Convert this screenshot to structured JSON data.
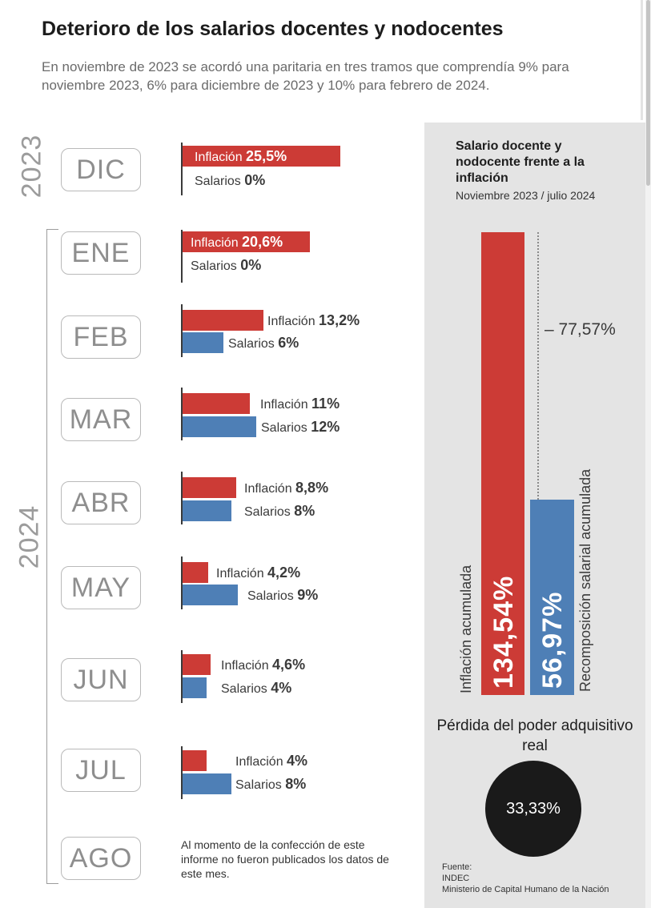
{
  "title": "Deterioro de los salarios docentes y nodocentes",
  "subtitle": "En noviembre de 2023 se acordó una paritaria en tres tramos que comprendía 9% para noviembre 2023, 6% para diciembre de 2023 y 10% para febrero de 2024.",
  "years": {
    "y2023": "2023",
    "y2024": "2024"
  },
  "months": {
    "dic": {
      "label": "DIC",
      "inf_text": "Inflación",
      "inf_val": "25,5%",
      "sal_text": "Salarios",
      "sal_val": "0%"
    },
    "ene": {
      "label": "ENE",
      "inf_text": "Inflación",
      "inf_val": "20,6%",
      "sal_text": "Salarios",
      "sal_val": "0%"
    },
    "feb": {
      "label": "FEB",
      "inf_text": "Inflación",
      "inf_val": "13,2%",
      "sal_text": "Salarios",
      "sal_val": "6%"
    },
    "mar": {
      "label": "MAR",
      "inf_text": "Inflación",
      "inf_val": "11%",
      "sal_text": "Salarios",
      "sal_val": "12%"
    },
    "abr": {
      "label": "ABR",
      "inf_text": "Inflación",
      "inf_val": "8,8%",
      "sal_text": "Salarios",
      "sal_val": "8%"
    },
    "may": {
      "label": "MAY",
      "inf_text": "Inflación",
      "inf_val": "4,2%",
      "sal_text": "Salarios",
      "sal_val": "9%"
    },
    "jun": {
      "label": "JUN",
      "inf_text": "Inflación",
      "inf_val": "4,6%",
      "sal_text": "Salarios",
      "sal_val": "4%"
    },
    "jul": {
      "label": "JUL",
      "inf_text": "Inflación",
      "inf_val": "4%",
      "sal_text": "Salarios",
      "sal_val": "8%"
    },
    "ago": {
      "label": "AGO",
      "note": "Al momento de la confección de este informe no fueron publicados los datos de este mes."
    }
  },
  "panel": {
    "title": "Salario docente y nodocente frente a la inflación",
    "subtitle": "Noviembre 2023 / julio 2024",
    "inflation_label": "Inflación acumulada",
    "inflation_value": "134,54%",
    "salary_label": "Recomposición salarial acumulada",
    "salary_value": "56,97%",
    "difference": "– 77,57%",
    "loss_title": "Pérdida del poder adquisitivo real",
    "loss_value": "33,33%",
    "source": [
      "Fuente:",
      "INDEC",
      "Ministerio de Capital Humano de la Nación"
    ]
  },
  "colors": {
    "inflation": "#cc3b36",
    "salary": "#4e7fb6",
    "panel_bg": "#e4e4e4",
    "circle": "#1a1a1a"
  },
  "chart_data": [
    {
      "type": "bar",
      "orientation": "horizontal",
      "categories": [
        "DIC",
        "ENE",
        "FEB",
        "MAR",
        "ABR",
        "MAY",
        "JUN",
        "JUL",
        "AGO"
      ],
      "groups": [
        "2023",
        "2024",
        "2024",
        "2024",
        "2024",
        "2024",
        "2024",
        "2024",
        "2024"
      ],
      "series": [
        {
          "name": "Inflación",
          "values": [
            25.5,
            20.6,
            13.2,
            11,
            8.8,
            4.2,
            4.6,
            4,
            null
          ]
        },
        {
          "name": "Salarios",
          "values": [
            0,
            0,
            6,
            12,
            8,
            9,
            4,
            8,
            null
          ]
        }
      ],
      "title": "Deterioro de los salarios docentes y nodocentes",
      "unit": "%"
    },
    {
      "type": "bar",
      "orientation": "vertical",
      "categories": [
        "Inflación acumulada",
        "Recomposición salarial acumulada"
      ],
      "values": [
        134.54,
        56.97
      ],
      "title": "Salario docente y nodocente frente a la inflación",
      "subtitle": "Noviembre 2023 / julio 2024",
      "annotation": "– 77,57%",
      "unit": "%"
    }
  ]
}
